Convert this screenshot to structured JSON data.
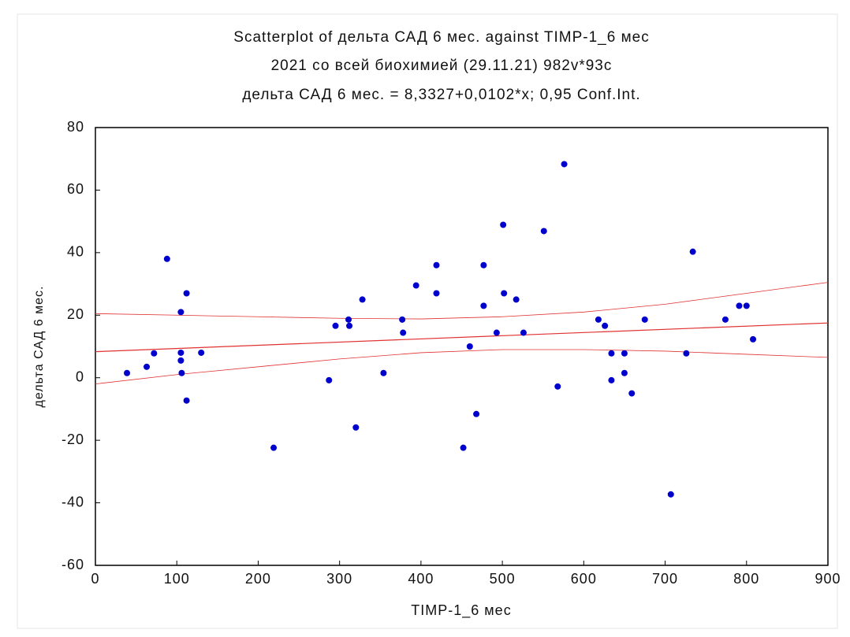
{
  "chart_data": {
    "type": "scatter",
    "title": "Scatterplot of дельта САД 6 мес. against TIMP-1_6 мес",
    "subtitle": "2021 со всей биохимией (29.11.21) 982v*93c",
    "equation": "дельта САД 6 мес. = 8,3327+0,0102*x; 0,95 Conf.Int.",
    "x_label": "TIMP-1_6 мес",
    "y_label": "дельта САД 6 мес.",
    "x": [
      38.8,
      63,
      72,
      88,
      105,
      105,
      105,
      106,
      112,
      112,
      130,
      219,
      287,
      295,
      311,
      312,
      320,
      328,
      354,
      377,
      378,
      394,
      419,
      419,
      452,
      460,
      468,
      477,
      477,
      493,
      501,
      502,
      517,
      526,
      551,
      568,
      576,
      618,
      626,
      634,
      634,
      650,
      650,
      659,
      675,
      707,
      726,
      734,
      774,
      791,
      800,
      808
    ],
    "y": [
      1.5,
      3.5,
      7.8,
      38,
      8,
      21,
      5.5,
      1.5,
      27,
      -7.3,
      8,
      -22.4,
      -0.8,
      16.6,
      18.6,
      16.6,
      -15.9,
      25,
      1.5,
      18.6,
      14.4,
      29.5,
      36,
      27,
      -22.4,
      10,
      -11.6,
      36,
      23,
      14.4,
      48.9,
      27,
      25,
      14.4,
      46.9,
      -2.8,
      68.3,
      18.6,
      16.6,
      7.8,
      -0.8,
      7.8,
      1.5,
      -5,
      18.6,
      -37.3,
      7.8,
      40.3,
      18.6,
      23,
      23,
      12.3
    ],
    "color": "#0000cc",
    "fit": {
      "intercept": 8.3327,
      "slope": 0.0102,
      "color": "#e03030"
    },
    "ci_x": [
      0,
      100,
      200,
      300,
      400,
      500,
      600,
      700,
      800,
      900
    ],
    "ci_upper": [
      20.5,
      20,
      19.5,
      19,
      18.8,
      19.5,
      21,
      23.5,
      27,
      30.5
    ],
    "ci_lower": [
      -2,
      1,
      3.5,
      6,
      8,
      9,
      9,
      8.5,
      7.5,
      6.5
    ],
    "xlim": [
      0,
      900
    ],
    "ylim": [
      -60,
      80
    ],
    "xticks": [
      0,
      100,
      200,
      300,
      400,
      500,
      600,
      700,
      800,
      900
    ],
    "yticks": [
      -60,
      -40,
      -20,
      0,
      20,
      40,
      60,
      80
    ]
  }
}
